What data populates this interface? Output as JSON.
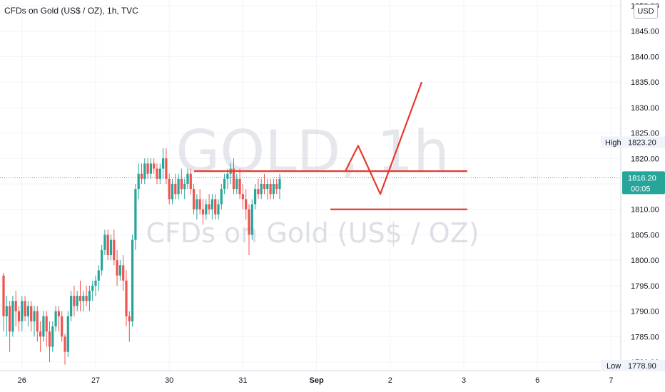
{
  "header": {
    "title": "CFDs on Gold (US$ / OZ), 1h, TVC"
  },
  "watermark": {
    "symbol": "GOLD, 1h",
    "description": "CFDs on Gold (US$ / OZ)"
  },
  "currency_label": "USD",
  "price_axis": {
    "ticks": [
      "1850.00",
      "1845.00",
      "1840.00",
      "1835.00",
      "1830.00",
      "1825.00",
      "1820.00",
      "1815.00",
      "1810.00",
      "1805.00",
      "1800.00",
      "1795.00",
      "1790.00",
      "1785.00",
      "1780.00"
    ]
  },
  "time_axis": {
    "ticks": [
      {
        "label": "26",
        "idx": 6
      },
      {
        "label": "27",
        "idx": 30
      },
      {
        "label": "30",
        "idx": 54
      },
      {
        "label": "31",
        "idx": 78
      },
      {
        "label": "Sep",
        "idx": 102
      },
      {
        "label": "2",
        "idx": 126
      },
      {
        "label": "3",
        "idx": 150
      },
      {
        "label": "6",
        "idx": 174
      },
      {
        "label": "7",
        "idx": 198
      }
    ]
  },
  "markers": {
    "high_label": "High",
    "high_value": "1823.20",
    "last_price": "1816.20",
    "countdown": "00:05",
    "low_label": "Low",
    "low_value": "1778.90"
  },
  "colors": {
    "up": "#26a69a",
    "down": "#ef5350",
    "drawing": "#e8392e",
    "last_line": "#26a69a"
  },
  "chart_data": {
    "type": "candlestick",
    "title": "CFDs on Gold (US$ / OZ), 1h, TVC",
    "ylim": [
      1778,
      1851
    ],
    "x_categories": [
      "26",
      "27",
      "30",
      "31",
      "Sep",
      "2",
      "3",
      "6",
      "7"
    ],
    "series": [
      {
        "name": "",
        "ohlc": [
          [
            1797,
            1797.5,
            1786,
            1789
          ],
          [
            1789,
            1793,
            1785,
            1791
          ],
          [
            1791,
            1792,
            1782,
            1786
          ],
          [
            1786,
            1793,
            1785,
            1792
          ],
          [
            1792,
            1794,
            1787,
            1790
          ],
          [
            1790,
            1791,
            1786,
            1788
          ],
          [
            1788,
            1793,
            1786,
            1792
          ],
          [
            1792,
            1793,
            1788,
            1789
          ],
          [
            1789,
            1792,
            1787,
            1791
          ],
          [
            1791,
            1792,
            1786,
            1788
          ],
          [
            1788,
            1791,
            1785,
            1790
          ],
          [
            1790,
            1791,
            1784,
            1786
          ],
          [
            1786,
            1788,
            1782,
            1785
          ],
          [
            1785,
            1790,
            1784,
            1789
          ],
          [
            1789,
            1790,
            1783,
            1786
          ],
          [
            1786,
            1788,
            1780,
            1783
          ],
          [
            1783,
            1788,
            1782,
            1787
          ],
          [
            1787,
            1791,
            1786,
            1790
          ],
          [
            1790,
            1791,
            1786,
            1789
          ],
          [
            1789,
            1790,
            1784,
            1785
          ],
          [
            1785,
            1785.5,
            1779.5,
            1782
          ],
          [
            1782,
            1790,
            1781,
            1789
          ],
          [
            1789,
            1794,
            1788,
            1793
          ],
          [
            1793,
            1795,
            1789,
            1791
          ],
          [
            1791,
            1794,
            1790,
            1793
          ],
          [
            1793,
            1796,
            1790,
            1792
          ],
          [
            1792,
            1794,
            1790,
            1793
          ],
          [
            1793,
            1795,
            1791,
            1792
          ],
          [
            1792,
            1795,
            1790,
            1794
          ],
          [
            1794,
            1796,
            1792,
            1795
          ],
          [
            1795,
            1797,
            1793,
            1796
          ],
          [
            1796,
            1799,
            1794,
            1798
          ],
          [
            1798,
            1803,
            1797,
            1802
          ],
          [
            1802,
            1806,
            1801,
            1805
          ],
          [
            1805,
            1806,
            1800,
            1801
          ],
          [
            1801,
            1805,
            1800,
            1804
          ],
          [
            1804,
            1806,
            1799,
            1800
          ],
          [
            1800,
            1802,
            1795,
            1797
          ],
          [
            1797,
            1800,
            1796,
            1799
          ],
          [
            1799,
            1801,
            1794,
            1796
          ],
          [
            1796,
            1798,
            1787,
            1789
          ],
          [
            1789,
            1790,
            1784,
            1788
          ],
          [
            1788,
            1805,
            1787,
            1804
          ],
          [
            1804,
            1815,
            1802,
            1814
          ],
          [
            1814,
            1819,
            1812,
            1817
          ],
          [
            1817,
            1819,
            1815,
            1816
          ],
          [
            1816,
            1820,
            1815,
            1819
          ],
          [
            1819,
            1820,
            1816,
            1817
          ],
          [
            1817,
            1820,
            1816,
            1819
          ],
          [
            1819,
            1820,
            1817,
            1818
          ],
          [
            1818,
            1819,
            1815,
            1816
          ],
          [
            1816,
            1819,
            1815,
            1818
          ],
          [
            1818,
            1822,
            1816,
            1820
          ],
          [
            1820,
            1822,
            1815,
            1816
          ],
          [
            1816,
            1817,
            1811,
            1812
          ],
          [
            1812,
            1816,
            1811,
            1815
          ],
          [
            1815,
            1817,
            1812,
            1813
          ],
          [
            1813,
            1817,
            1812,
            1816
          ],
          [
            1816,
            1818,
            1813,
            1814
          ],
          [
            1814,
            1816,
            1812,
            1815
          ],
          [
            1815,
            1818,
            1814,
            1817
          ],
          [
            1817,
            1818,
            1813,
            1814
          ],
          [
            1814,
            1815,
            1809,
            1810
          ],
          [
            1810,
            1813,
            1808,
            1812
          ],
          [
            1812,
            1814,
            1809,
            1810
          ],
          [
            1810,
            1812,
            1807,
            1809
          ],
          [
            1809,
            1812,
            1808,
            1811
          ],
          [
            1811,
            1813,
            1809,
            1810
          ],
          [
            1810,
            1813,
            1808,
            1812
          ],
          [
            1812,
            1813,
            1808,
            1809
          ],
          [
            1809,
            1812,
            1808,
            1811
          ],
          [
            1811,
            1815,
            1810,
            1814
          ],
          [
            1814,
            1817,
            1813,
            1816
          ],
          [
            1816,
            1818,
            1814,
            1817
          ],
          [
            1817,
            1819,
            1815,
            1818
          ],
          [
            1818,
            1820,
            1813,
            1814
          ],
          [
            1814,
            1817,
            1813,
            1816
          ],
          [
            1816,
            1818,
            1812,
            1813
          ],
          [
            1813,
            1815,
            1810,
            1812
          ],
          [
            1812,
            1814,
            1808,
            1810
          ],
          [
            1810,
            1811,
            1801,
            1805
          ],
          [
            1805,
            1812,
            1804,
            1811
          ],
          [
            1811,
            1815,
            1810,
            1814
          ],
          [
            1814,
            1816,
            1812,
            1813
          ],
          [
            1813,
            1816,
            1812,
            1815
          ],
          [
            1815,
            1817,
            1813,
            1814
          ],
          [
            1814,
            1816,
            1812,
            1815
          ],
          [
            1815,
            1816,
            1812,
            1813
          ],
          [
            1813,
            1816,
            1812,
            1815
          ],
          [
            1815,
            1816,
            1813,
            1814
          ],
          [
            1814,
            1817,
            1812,
            1816
          ]
        ]
      }
    ],
    "annotations": {
      "resistance_line": 1817.5,
      "support_line": 1810.0,
      "projection_path": [
        {
          "idx": 92,
          "price": 1817.5
        },
        {
          "idx": 96,
          "price": 1822.5
        },
        {
          "idx": 102,
          "price": 1813.0
        },
        {
          "idx": 110,
          "price": 1835.0
        }
      ]
    }
  }
}
